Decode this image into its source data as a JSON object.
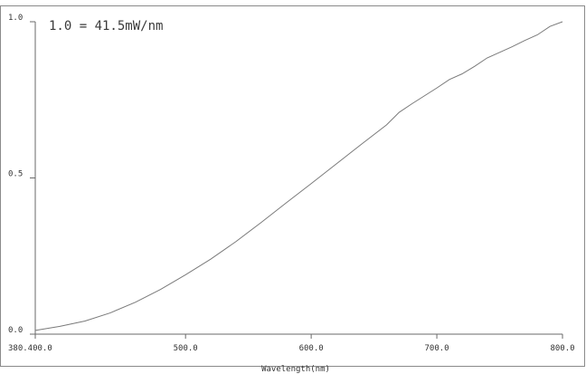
{
  "chart_data": {
    "type": "line",
    "title": "",
    "annotation": "1.0 = 41.5mW/nm",
    "xlabel": "Wavelength(nm)",
    "ylabel": "",
    "xlim": [
      380.4,
      800.0
    ],
    "ylim": [
      0.0,
      1.0
    ],
    "x_ticks": [
      380.4,
      500.0,
      600.0,
      700.0,
      800.0
    ],
    "x_tick_labels": [
      "380.400.0",
      "500.0",
      "600.0",
      "700.0",
      "800.0"
    ],
    "y_ticks": [
      0.0,
      0.5,
      1.0
    ],
    "y_tick_labels": [
      "0.0",
      "0.5",
      "1.0"
    ],
    "grid": false,
    "series": [
      {
        "color": "#7a7a7a",
        "x": [
          380.4,
          400,
          420,
          440,
          460,
          480,
          500,
          520,
          540,
          560,
          580,
          600,
          620,
          640,
          660,
          670,
          680,
          700,
          710,
          720,
          730,
          740,
          750,
          760,
          770,
          780,
          790,
          800
        ],
        "y": [
          0.012,
          0.025,
          0.042,
          0.068,
          0.102,
          0.143,
          0.19,
          0.24,
          0.296,
          0.357,
          0.42,
          0.482,
          0.545,
          0.608,
          0.67,
          0.71,
          0.737,
          0.788,
          0.815,
          0.833,
          0.857,
          0.884,
          0.902,
          0.92,
          0.94,
          0.958,
          0.985,
          1.0
        ]
      }
    ]
  }
}
